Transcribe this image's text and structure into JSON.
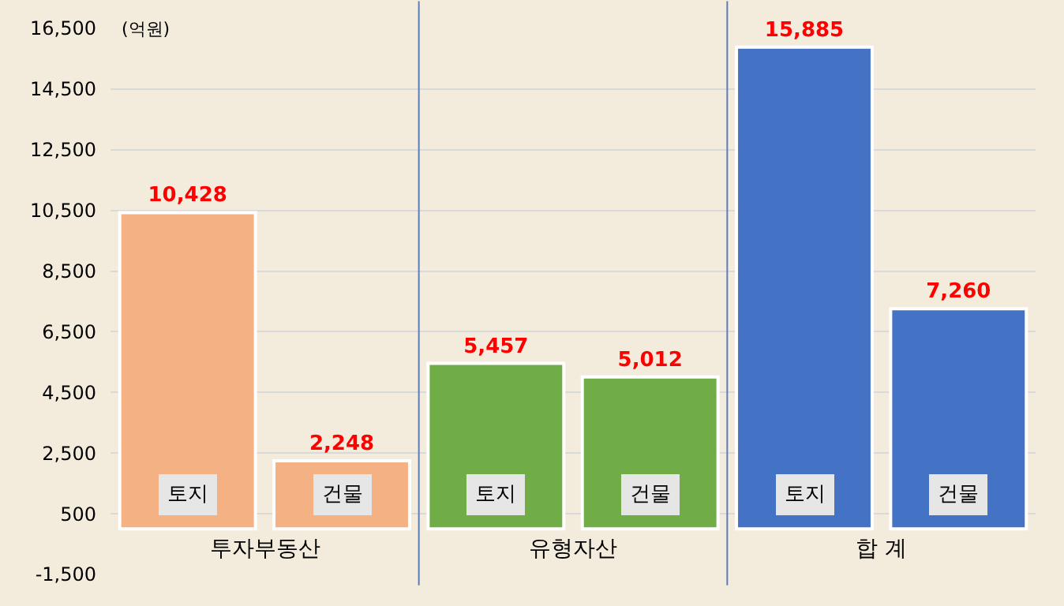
{
  "chart_data": {
    "type": "bar",
    "ylabel": "(억원)",
    "categories": [
      "토지",
      "건물",
      "토지",
      "건물",
      "토지",
      "건물"
    ],
    "values": [
      10428,
      2248,
      5457,
      5012,
      15885,
      7260
    ],
    "colors": [
      "#f4b183",
      "#f4b183",
      "#70ad47",
      "#70ad47",
      "#4472c4",
      "#4472c4"
    ],
    "value_labels": [
      "10,428",
      "2,248",
      "5,457",
      "5,012",
      "15,885",
      "7,260"
    ],
    "annotations": [
      "투자부동산",
      "유형자산",
      "합 계"
    ],
    "ylim": [
      -1500,
      16500
    ],
    "yticks": [
      {
        "value": -1500,
        "label": "-1,500"
      },
      {
        "value": 500,
        "label": "500"
      },
      {
        "value": 2500,
        "label": "2,500"
      },
      {
        "value": 4500,
        "label": "4,500"
      },
      {
        "value": 6500,
        "label": "6,500"
      },
      {
        "value": 8500,
        "label": "8,500"
      },
      {
        "value": 10500,
        "label": "10,500"
      },
      {
        "value": 12500,
        "label": "12,500"
      },
      {
        "value": 14500,
        "label": "14,500"
      },
      {
        "value": 16500,
        "label": "16,500"
      }
    ],
    "grid": "y",
    "tick_labels": "y"
  }
}
